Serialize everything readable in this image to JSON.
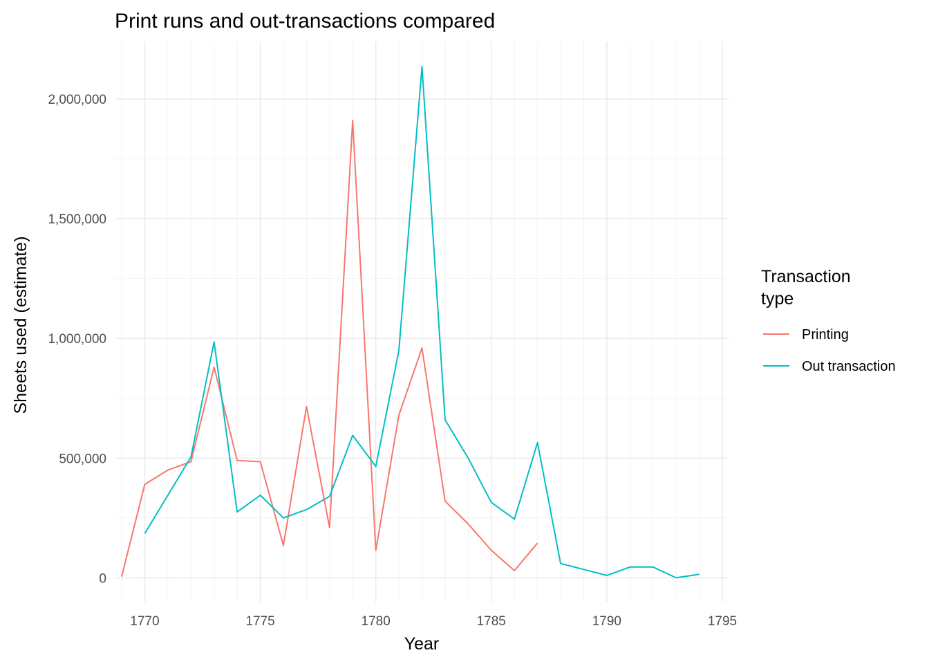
{
  "chart_data": {
    "type": "line",
    "title": "Print runs and out-transactions compared",
    "xlabel": "Year",
    "ylabel": "Sheets used (estimate)",
    "xlim": [
      1768.7,
      1795.3
    ],
    "ylim": [
      -100000,
      2240000
    ],
    "x_ticks": [
      1770,
      1775,
      1780,
      1785,
      1790,
      1795
    ],
    "x_tick_labels": [
      "1770",
      "1775",
      "1780",
      "1785",
      "1790",
      "1795"
    ],
    "y_ticks": [
      0,
      500000,
      1000000,
      1500000,
      2000000
    ],
    "y_tick_labels": [
      "0",
      "500,000",
      "1,000,000",
      "1,500,000",
      "2,000,000"
    ],
    "grid": true,
    "legend": {
      "title_lines": [
        "Transaction",
        "type"
      ],
      "position": "right"
    },
    "series": [
      {
        "name": "Printing",
        "color": "#F8766D",
        "x": [
          1769,
          1770,
          1771,
          1772,
          1773,
          1774,
          1775,
          1776,
          1777,
          1778,
          1779,
          1780,
          1781,
          1782,
          1783,
          1784,
          1785,
          1786,
          1787
        ],
        "y": [
          5000,
          390000,
          450000,
          485000,
          880000,
          490000,
          485000,
          135000,
          715000,
          210000,
          1910000,
          115000,
          680000,
          960000,
          320000,
          225000,
          115000,
          30000,
          145000
        ]
      },
      {
        "name": "Out transaction",
        "color": "#00BFC4",
        "x": [
          1770,
          1771,
          1772,
          1773,
          1774,
          1775,
          1776,
          1777,
          1778,
          1779,
          1780,
          1781,
          1782,
          1783,
          1784,
          1785,
          1786,
          1787,
          1788,
          1789,
          1790,
          1791,
          1792,
          1793,
          1794
        ],
        "y": [
          185000,
          345000,
          505000,
          985000,
          275000,
          345000,
          250000,
          285000,
          340000,
          595000,
          465000,
          950000,
          2135000,
          660000,
          500000,
          315000,
          245000,
          565000,
          60000,
          35000,
          10000,
          45000,
          45000,
          0,
          15000
        ]
      }
    ]
  }
}
